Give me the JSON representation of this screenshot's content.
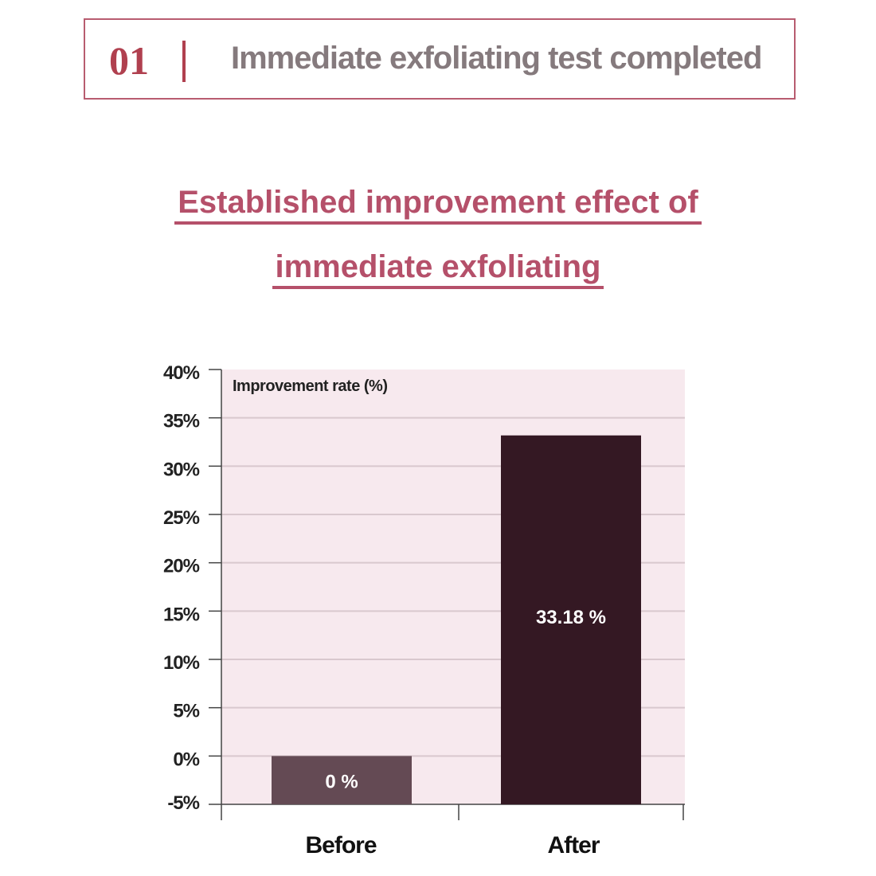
{
  "header": {
    "number": "01",
    "text": "Immediate exfoliating test completed"
  },
  "title": {
    "line1": "Established improvement effect of",
    "line2": "immediate exfoliating"
  },
  "chart_data": {
    "type": "bar",
    "ylabel": "Improvement rate (%)",
    "categories": [
      "Before",
      "After"
    ],
    "values": [
      0,
      33.18
    ],
    "data_labels": [
      "0 %",
      "33.18 %"
    ],
    "ylim": [
      -5,
      40
    ],
    "yticks": [
      40,
      35,
      30,
      25,
      20,
      15,
      10,
      5,
      0,
      -5
    ],
    "ytick_labels": [
      "40%",
      "35%",
      "30%",
      "25%",
      "20%",
      "15%",
      "10%",
      "5%",
      "0%",
      "-5%"
    ],
    "grid": true,
    "colors": {
      "Before": "#644a54",
      "After": "#341823",
      "background": "#f7e9ee",
      "grid": "#d9c8ce"
    }
  }
}
